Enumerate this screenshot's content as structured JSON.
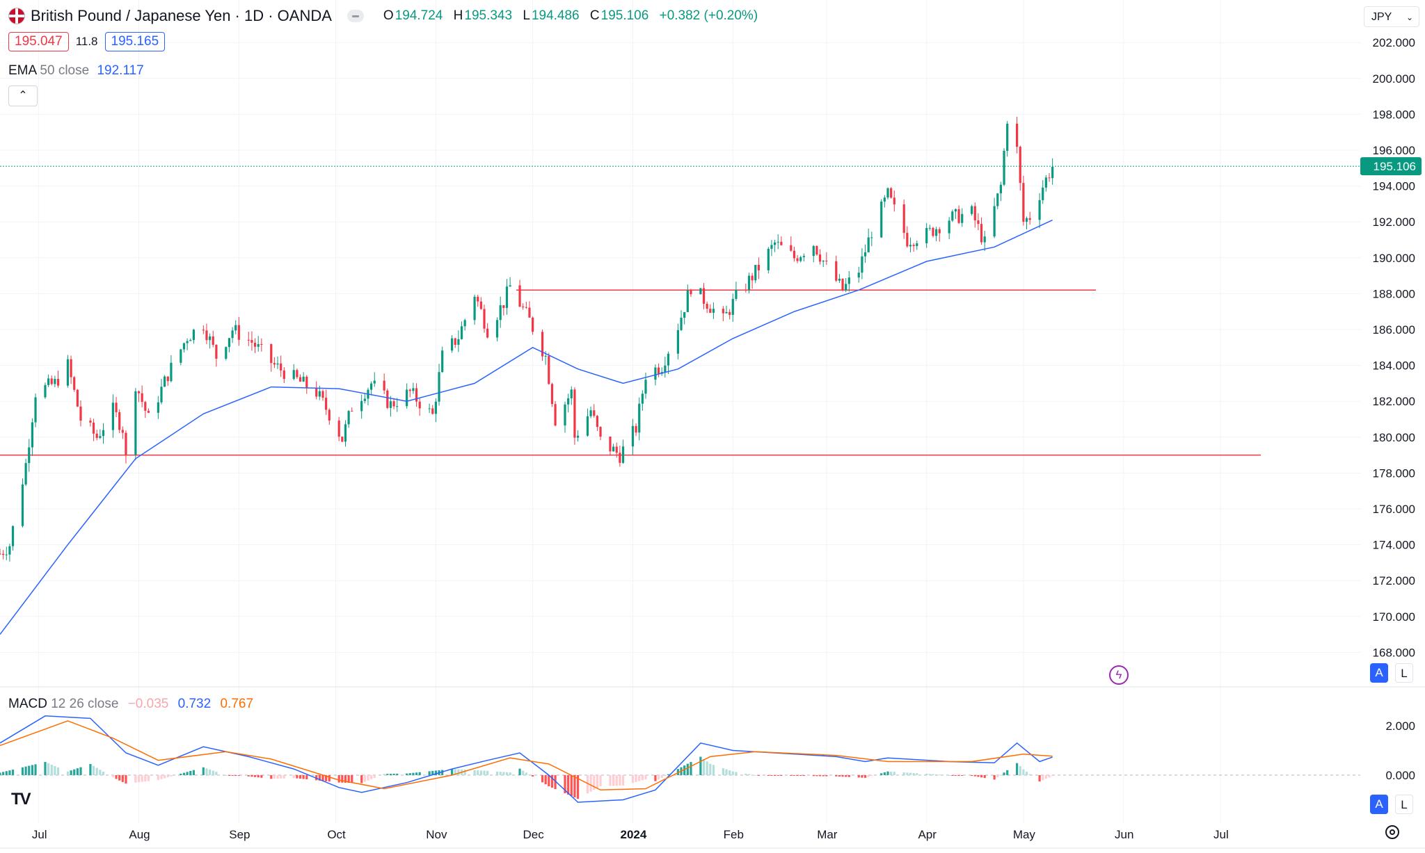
{
  "header": {
    "title": "British Pound / Japanese Yen · 1D · OANDA",
    "ohlc": [
      {
        "key": "O",
        "value": "194.724"
      },
      {
        "key": "H",
        "value": "195.343"
      },
      {
        "key": "L",
        "value": "194.486"
      },
      {
        "key": "C",
        "value": "195.106"
      }
    ],
    "change": "+0.382 (+0.20%)",
    "bid": "195.047",
    "spread": "11.8",
    "ask": "195.165"
  },
  "ema": {
    "label": "EMA",
    "params": "50 close",
    "value": "192.117"
  },
  "macd_legend": {
    "label": "MACD",
    "params": "12 26 close",
    "hist": "−0.035",
    "macd": "0.732",
    "signal": "0.767"
  },
  "currency": "JPY",
  "scale_buttons": {
    "auto": "A",
    "log": "L"
  },
  "colors": {
    "up": "#089981",
    "down": "#f23645",
    "ema": "#2962ff",
    "signal": "#ff6d00",
    "level": "#f23645"
  },
  "chart_data": {
    "type": "candlestick",
    "symbol": "GBPJPY",
    "interval": "1D",
    "y_ticks": [
      "202.000",
      "200.000",
      "198.000",
      "196.000",
      "194.000",
      "192.000",
      "190.000",
      "188.000",
      "186.000",
      "184.000",
      "182.000",
      "180.000",
      "178.000",
      "176.000",
      "174.000",
      "172.000",
      "170.000",
      "168.000"
    ],
    "x_ticks": [
      "Jul",
      "Aug",
      "Sep",
      "Oct",
      "Nov",
      "Dec",
      "2024",
      "Feb",
      "Mar",
      "Apr",
      "May",
      "Jun",
      "Jul"
    ],
    "last_price": "195.106",
    "last_value": 195.106,
    "horizontal_levels": [
      179.0,
      188.2
    ],
    "price_path": [
      [
        "2023-06-19",
        173.5
      ],
      [
        "2023-06-22",
        174.0
      ],
      [
        "2023-06-27",
        178.5
      ],
      [
        "2023-06-30",
        182.5
      ],
      [
        "2023-07-06",
        183.0
      ],
      [
        "2023-07-10",
        184.0
      ],
      [
        "2023-07-14",
        181.0
      ],
      [
        "2023-07-19",
        180.0
      ],
      [
        "2023-07-24",
        181.5
      ],
      [
        "2023-07-27",
        180.5
      ],
      [
        "2023-07-28",
        178.8
      ],
      [
        "2023-07-31",
        183.0
      ],
      [
        "2023-08-04",
        181.0
      ],
      [
        "2023-08-10",
        183.5
      ],
      [
        "2023-08-16",
        185.6
      ],
      [
        "2023-08-21",
        186.3
      ],
      [
        "2023-08-25",
        184.5
      ],
      [
        "2023-08-30",
        186.0
      ],
      [
        "2023-09-05",
        185.3
      ],
      [
        "2023-09-12",
        184.0
      ],
      [
        "2023-09-18",
        183.3
      ],
      [
        "2023-09-25",
        182.5
      ],
      [
        "2023-09-29",
        181.3
      ],
      [
        "2023-10-03",
        179.9
      ],
      [
        "2023-10-06",
        181.7
      ],
      [
        "2023-10-12",
        183.0
      ],
      [
        "2023-10-18",
        181.8
      ],
      [
        "2023-10-24",
        182.5
      ],
      [
        "2023-10-31",
        181.2
      ],
      [
        "2023-11-03",
        184.5
      ],
      [
        "2023-11-08",
        185.6
      ],
      [
        "2023-11-13",
        188.0
      ],
      [
        "2023-11-17",
        186.0
      ],
      [
        "2023-11-22",
        187.5
      ],
      [
        "2023-11-24",
        188.4
      ],
      [
        "2023-11-30",
        186.5
      ],
      [
        "2023-12-05",
        184.5
      ],
      [
        "2023-12-08",
        181.0
      ],
      [
        "2023-12-13",
        182.5
      ],
      [
        "2023-12-14",
        180.0
      ],
      [
        "2023-12-19",
        181.5
      ],
      [
        "2023-12-22",
        179.8
      ],
      [
        "2023-12-28",
        179.0
      ],
      [
        "2024-01-02",
        180.5
      ],
      [
        "2024-01-05",
        183.5
      ],
      [
        "2024-01-10",
        184.0
      ],
      [
        "2024-01-15",
        186.2
      ],
      [
        "2024-01-19",
        188.4
      ],
      [
        "2024-01-24",
        187.5
      ],
      [
        "2024-01-29",
        186.5
      ],
      [
        "2024-02-02",
        187.8
      ],
      [
        "2024-02-08",
        189.2
      ],
      [
        "2024-02-14",
        190.8
      ],
      [
        "2024-02-20",
        190.0
      ],
      [
        "2024-02-26",
        190.8
      ],
      [
        "2024-03-01",
        189.5
      ],
      [
        "2024-03-06",
        188.2
      ],
      [
        "2024-03-11",
        189.3
      ],
      [
        "2024-03-15",
        191.5
      ],
      [
        "2024-03-20",
        193.5
      ],
      [
        "2024-03-26",
        191.0
      ],
      [
        "2024-04-01",
        191.3
      ],
      [
        "2024-04-08",
        192.2
      ],
      [
        "2024-04-15",
        192.5
      ],
      [
        "2024-04-19",
        190.8
      ],
      [
        "2024-04-24",
        194.0
      ],
      [
        "2024-04-26",
        197.8
      ],
      [
        "2024-04-29",
        196.0
      ],
      [
        "2024-05-01",
        192.0
      ],
      [
        "2024-05-03",
        192.3
      ],
      [
        "2024-05-07",
        194.0
      ],
      [
        "2024-05-10",
        195.1
      ]
    ],
    "ema50_path": [
      [
        "2023-06-19",
        169.0
      ],
      [
        "2023-07-10",
        174.0
      ],
      [
        "2023-07-31",
        178.8
      ],
      [
        "2023-08-21",
        181.3
      ],
      [
        "2023-09-11",
        182.8
      ],
      [
        "2023-10-02",
        182.7
      ],
      [
        "2023-10-23",
        182.0
      ],
      [
        "2023-11-13",
        183.0
      ],
      [
        "2023-12-01",
        185.0
      ],
      [
        "2023-12-15",
        183.8
      ],
      [
        "2023-12-29",
        183.0
      ],
      [
        "2024-01-15",
        183.8
      ],
      [
        "2024-02-01",
        185.5
      ],
      [
        "2024-02-20",
        187.0
      ],
      [
        "2024-03-11",
        188.2
      ],
      [
        "2024-04-01",
        189.8
      ],
      [
        "2024-04-22",
        190.6
      ],
      [
        "2024-05-10",
        192.1
      ]
    ],
    "macd": {
      "y_ticks": [
        "2.000",
        "0.000"
      ],
      "macd_path": [
        [
          "2023-06-19",
          1.3
        ],
        [
          "2023-07-03",
          2.4
        ],
        [
          "2023-07-17",
          2.3
        ],
        [
          "2023-07-28",
          0.9
        ],
        [
          "2023-08-07",
          0.4
        ],
        [
          "2023-08-21",
          1.15
        ],
        [
          "2023-09-04",
          0.75
        ],
        [
          "2023-09-18",
          0.25
        ],
        [
          "2023-10-02",
          -0.5
        ],
        [
          "2023-10-09",
          -0.7
        ],
        [
          "2023-10-23",
          -0.3
        ],
        [
          "2023-11-06",
          0.25
        ],
        [
          "2023-11-17",
          0.6
        ],
        [
          "2023-11-27",
          0.9
        ],
        [
          "2023-12-06",
          0.0
        ],
        [
          "2023-12-15",
          -1.1
        ],
        [
          "2023-12-29",
          -1.0
        ],
        [
          "2024-01-08",
          -0.6
        ],
        [
          "2024-01-22",
          1.3
        ],
        [
          "2024-02-01",
          1.0
        ],
        [
          "2024-02-14",
          0.9
        ],
        [
          "2024-03-04",
          0.75
        ],
        [
          "2024-03-13",
          0.55
        ],
        [
          "2024-03-20",
          0.7
        ],
        [
          "2024-04-08",
          0.55
        ],
        [
          "2024-04-22",
          0.5
        ],
        [
          "2024-04-29",
          1.3
        ],
        [
          "2024-05-06",
          0.55
        ],
        [
          "2024-05-10",
          0.73
        ]
      ],
      "signal_path": [
        [
          "2023-06-19",
          1.2
        ],
        [
          "2023-07-10",
          2.2
        ],
        [
          "2023-07-24",
          1.5
        ],
        [
          "2023-08-07",
          0.6
        ],
        [
          "2023-08-28",
          0.95
        ],
        [
          "2023-09-11",
          0.65
        ],
        [
          "2023-10-02",
          -0.2
        ],
        [
          "2023-10-16",
          -0.55
        ],
        [
          "2023-11-06",
          0.0
        ],
        [
          "2023-11-24",
          0.7
        ],
        [
          "2023-12-06",
          0.45
        ],
        [
          "2023-12-22",
          -0.6
        ],
        [
          "2024-01-05",
          -0.55
        ],
        [
          "2024-01-25",
          0.75
        ],
        [
          "2024-02-08",
          0.95
        ],
        [
          "2024-03-04",
          0.8
        ],
        [
          "2024-03-20",
          0.55
        ],
        [
          "2024-04-15",
          0.55
        ],
        [
          "2024-05-01",
          0.85
        ],
        [
          "2024-05-10",
          0.77
        ]
      ],
      "last_histogram": -0.035
    }
  }
}
